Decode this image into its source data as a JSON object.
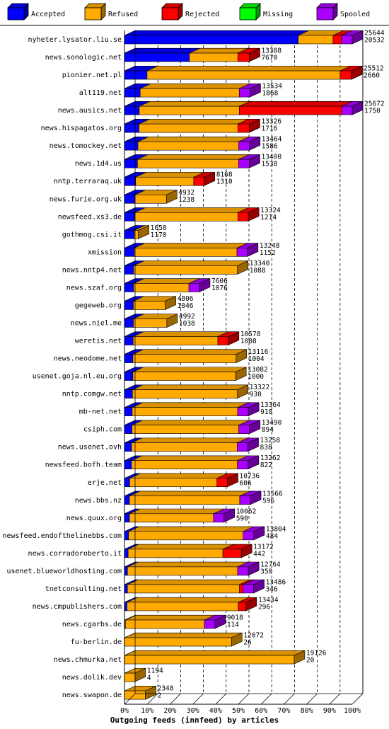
{
  "chart_data": {
    "type": "bar",
    "stacked": true,
    "orientation": "horizontal",
    "title": "Outgoing feeds (innfeed) by articles",
    "x_unit": "percent",
    "xlim": [
      0,
      100
    ],
    "x_ticks": [
      "0%",
      "10%",
      "20%",
      "30%",
      "40%",
      "50%",
      "60%",
      "70%",
      "80%",
      "90%",
      "100%"
    ],
    "grid": true,
    "legend_position": "top",
    "legend": [
      {
        "name": "Accepted",
        "color": "#0000ff"
      },
      {
        "name": "Refused",
        "color": "#ffaa00"
      },
      {
        "name": "Rejected",
        "color": "#ff0000"
      },
      {
        "name": "Missing",
        "color": "#00ff00"
      },
      {
        "name": "Spooled",
        "color": "#aa00ff"
      }
    ],
    "rows": [
      {
        "host": "nyheter.lysator.liu.se",
        "offered": "25644",
        "accepted": "20532",
        "pct": {
          "Accepted": 76.3,
          "Refused": 15.3,
          "Rejected": 3.7,
          "Missing": 0,
          "Spooled": 4.7
        }
      },
      {
        "host": "news.sonologic.net",
        "offered": "13388",
        "accepted": "7670",
        "pct": {
          "Accepted": 28.5,
          "Refused": 21.3,
          "Rejected": 5.0,
          "Missing": 0,
          "Spooled": 0
        }
      },
      {
        "host": "pionier.net.pl",
        "offered": "25512",
        "accepted": "2660",
        "pct": {
          "Accepted": 9.9,
          "Refused": 84.8,
          "Rejected": 5.0,
          "Missing": 0,
          "Spooled": 0
        }
      },
      {
        "host": "alt119.net",
        "offered": "13534",
        "accepted": "1868",
        "pct": {
          "Accepted": 6.9,
          "Refused": 43.5,
          "Rejected": 0,
          "Missing": 0,
          "Spooled": 4.7
        }
      },
      {
        "host": "news.ausics.net",
        "offered": "25672",
        "accepted": "1750",
        "pct": {
          "Accepted": 6.5,
          "Refused": 43.9,
          "Rejected": 45.0,
          "Missing": 0,
          "Spooled": 4.6
        }
      },
      {
        "host": "news.hispagatos.org",
        "offered": "13326",
        "accepted": "1716",
        "pct": {
          "Accepted": 6.4,
          "Refused": 43.4,
          "Rejected": 5.0,
          "Missing": 0,
          "Spooled": 0
        }
      },
      {
        "host": "news.tomockey.net",
        "offered": "13464",
        "accepted": "1586",
        "pct": {
          "Accepted": 5.9,
          "Refused": 44.3,
          "Rejected": 0,
          "Missing": 0,
          "Spooled": 4.7
        }
      },
      {
        "host": "news.1d4.us",
        "offered": "13400",
        "accepted": "1538",
        "pct": {
          "Accepted": 5.7,
          "Refused": 44.4,
          "Rejected": 0,
          "Missing": 0,
          "Spooled": 4.7
        }
      },
      {
        "host": "nntp.terraraq.uk",
        "offered": "8168",
        "accepted": "1310",
        "pct": {
          "Accepted": 4.9,
          "Refused": 25.5,
          "Rejected": 4.6,
          "Missing": 0,
          "Spooled": 0
        }
      },
      {
        "host": "news.furie.org.uk",
        "offered": "4932",
        "accepted": "1238",
        "pct": {
          "Accepted": 4.6,
          "Refused": 13.8,
          "Rejected": 0,
          "Missing": 0,
          "Spooled": 0
        }
      },
      {
        "host": "newsfeed.xs3.de",
        "offered": "13324",
        "accepted": "1214",
        "pct": {
          "Accepted": 4.5,
          "Refused": 45.3,
          "Rejected": 4.6,
          "Missing": 0,
          "Spooled": 0
        }
      },
      {
        "host": "gothmog.csi.it",
        "offered": "1658",
        "accepted": "1170",
        "pct": {
          "Accepted": 4.3,
          "Refused": 1.8,
          "Rejected": 0,
          "Missing": 0,
          "Spooled": 0
        }
      },
      {
        "host": "xmission",
        "offered": "13248",
        "accepted": "1152",
        "pct": {
          "Accepted": 4.3,
          "Refused": 45.1,
          "Rejected": 0,
          "Missing": 0,
          "Spooled": 4.6
        }
      },
      {
        "host": "news.nntp4.net",
        "offered": "13340",
        "accepted": "1088",
        "pct": {
          "Accepted": 4.0,
          "Refused": 45.6,
          "Rejected": 0,
          "Missing": 0,
          "Spooled": 0
        }
      },
      {
        "host": "news.szaf.org",
        "offered": "7606",
        "accepted": "1076",
        "pct": {
          "Accepted": 4.0,
          "Refused": 24.3,
          "Rejected": 0,
          "Missing": 0,
          "Spooled": 4.6
        }
      },
      {
        "host": "gegeweb.org",
        "offered": "4806",
        "accepted": "1046",
        "pct": {
          "Accepted": 3.9,
          "Refused": 14.0,
          "Rejected": 0,
          "Missing": 0,
          "Spooled": 0
        }
      },
      {
        "host": "news.niel.me",
        "offered": "4992",
        "accepted": "1038",
        "pct": {
          "Accepted": 3.9,
          "Refused": 14.7,
          "Rejected": 0,
          "Missing": 0,
          "Spooled": 0
        }
      },
      {
        "host": "weretis.net",
        "offered": "10578",
        "accepted": "1008",
        "pct": {
          "Accepted": 3.8,
          "Refused": 37.2,
          "Rejected": 4.6,
          "Missing": 0,
          "Spooled": 0
        }
      },
      {
        "host": "news.neodome.net",
        "offered": "13116",
        "accepted": "1004",
        "pct": {
          "Accepted": 3.7,
          "Refused": 45.3,
          "Rejected": 0,
          "Missing": 0,
          "Spooled": 0
        }
      },
      {
        "host": "usenet.goja.nl.eu.org",
        "offered": "13082",
        "accepted": "1000",
        "pct": {
          "Accepted": 3.7,
          "Refused": 45.1,
          "Rejected": 0,
          "Missing": 0,
          "Spooled": 0
        }
      },
      {
        "host": "nntp.comgw.net",
        "offered": "13322",
        "accepted": "930",
        "pct": {
          "Accepted": 3.5,
          "Refused": 46.1,
          "Rejected": 0,
          "Missing": 0,
          "Spooled": 0
        }
      },
      {
        "host": "mb-net.net",
        "offered": "13364",
        "accepted": "918",
        "pct": {
          "Accepted": 3.4,
          "Refused": 46.3,
          "Rejected": 0,
          "Missing": 0,
          "Spooled": 4.7
        }
      },
      {
        "host": "csiph.com",
        "offered": "13490",
        "accepted": "894",
        "pct": {
          "Accepted": 3.3,
          "Refused": 46.9,
          "Rejected": 0,
          "Missing": 0,
          "Spooled": 4.7
        }
      },
      {
        "host": "news.usenet.ovh",
        "offered": "13258",
        "accepted": "838",
        "pct": {
          "Accepted": 3.1,
          "Refused": 46.4,
          "Rejected": 0,
          "Missing": 0,
          "Spooled": 4.7
        }
      },
      {
        "host": "newsfeed.bofh.team",
        "offered": "13262",
        "accepted": "822",
        "pct": {
          "Accepted": 3.1,
          "Refused": 46.5,
          "Rejected": 0,
          "Missing": 0,
          "Spooled": 4.7
        }
      },
      {
        "host": "erje.net",
        "offered": "10736",
        "accepted": "606",
        "pct": {
          "Accepted": 2.3,
          "Refused": 38.3,
          "Rejected": 4.6,
          "Missing": 0,
          "Spooled": 0
        }
      },
      {
        "host": "news.bbs.nz",
        "offered": "13566",
        "accepted": "596",
        "pct": {
          "Accepted": 2.2,
          "Refused": 48.4,
          "Rejected": 0,
          "Missing": 0,
          "Spooled": 4.7
        }
      },
      {
        "host": "news.quux.org",
        "offered": "10062",
        "accepted": "590",
        "pct": {
          "Accepted": 2.2,
          "Refused": 36.9,
          "Rejected": 0,
          "Missing": 0,
          "Spooled": 4.6
        }
      },
      {
        "host": "newsfeed.endofthelinebbs.com",
        "offered": "13804",
        "accepted": "484",
        "pct": {
          "Accepted": 1.8,
          "Refused": 50.3,
          "Rejected": 0,
          "Missing": 0,
          "Spooled": 4.7
        }
      },
      {
        "host": "news.corradoroberto.it",
        "offered": "13172",
        "accepted": "442",
        "pct": {
          "Accepted": 1.6,
          "Refused": 41.6,
          "Rejected": 8.1,
          "Missing": 0,
          "Spooled": 0
        }
      },
      {
        "host": "usenet.blueworldhosting.com",
        "offered": "12764",
        "accepted": "350",
        "pct": {
          "Accepted": 1.3,
          "Refused": 48.4,
          "Rejected": 0,
          "Missing": 0,
          "Spooled": 4.7
        }
      },
      {
        "host": "tnetconsulting.net",
        "offered": "13486",
        "accepted": "346",
        "pct": {
          "Accepted": 1.3,
          "Refused": 49.2,
          "Rejected": 1.6,
          "Missing": 0,
          "Spooled": 4.6
        }
      },
      {
        "host": "news.cmpublishers.com",
        "offered": "13434",
        "accepted": "296",
        "pct": {
          "Accepted": 1.1,
          "Refused": 48.9,
          "Rejected": 3.4,
          "Missing": 0,
          "Spooled": 0
        }
      },
      {
        "host": "news.cgarbs.de",
        "offered": "9018",
        "accepted": "114",
        "pct": {
          "Accepted": 0.4,
          "Refused": 34.7,
          "Rejected": 0,
          "Missing": 0,
          "Spooled": 4.6
        }
      },
      {
        "host": "fu-berlin.de",
        "offered": "12072",
        "accepted": "26",
        "pct": {
          "Accepted": 0.1,
          "Refused": 46.9,
          "Rejected": 0,
          "Missing": 0,
          "Spooled": 0
        }
      },
      {
        "host": "news.chmurka.net",
        "offered": "19126",
        "accepted": "20",
        "pct": {
          "Accepted": 0.1,
          "Refused": 74.4,
          "Rejected": 0,
          "Missing": 0,
          "Spooled": 0
        }
      },
      {
        "host": "news.dolik.dev",
        "offered": "1194",
        "accepted": "4",
        "pct": {
          "Accepted": 0,
          "Refused": 4.6,
          "Rejected": 0,
          "Missing": 0,
          "Spooled": 0
        }
      },
      {
        "host": "news.swapon.de",
        "offered": "2348",
        "accepted": "2",
        "pct": {
          "Accepted": 0,
          "Refused": 9.2,
          "Rejected": 0,
          "Missing": 0,
          "Spooled": 0
        }
      }
    ]
  }
}
